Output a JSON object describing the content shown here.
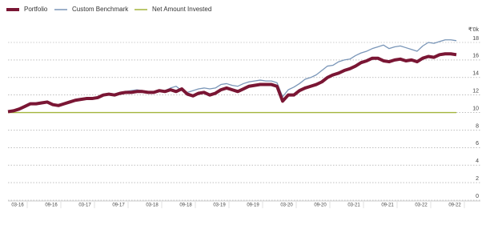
{
  "chart_data": {
    "type": "line",
    "y_unit_label": "₹'0k",
    "categories": [
      null,
      "03-16",
      null,
      null,
      null,
      null,
      null,
      "09-16",
      null,
      null,
      null,
      null,
      null,
      "03-17",
      null,
      null,
      null,
      null,
      null,
      "09-17",
      null,
      null,
      null,
      null,
      null,
      "03-18",
      null,
      null,
      null,
      null,
      null,
      "09-18",
      null,
      null,
      null,
      null,
      null,
      "03-19",
      null,
      null,
      null,
      null,
      null,
      "09-19",
      null,
      null,
      null,
      null,
      null,
      "03-20",
      null,
      null,
      null,
      null,
      null,
      "09-20",
      null,
      null,
      null,
      null,
      null,
      "03-21",
      null,
      null,
      null,
      null,
      null,
      "09-21",
      null,
      null,
      null,
      null,
      null,
      "03-22",
      null,
      null,
      null,
      null,
      null,
      "09-22",
      null
    ],
    "series": [
      {
        "name": "Portfolio",
        "color": "#7a1634",
        "width": 4,
        "values": [
          10.1,
          10.2,
          10.4,
          10.7,
          11.0,
          11.0,
          11.1,
          11.2,
          10.9,
          10.8,
          11.0,
          11.2,
          11.4,
          11.5,
          11.6,
          11.6,
          11.7,
          12.0,
          12.1,
          12.0,
          12.2,
          12.3,
          12.3,
          12.4,
          12.4,
          12.3,
          12.3,
          12.5,
          12.4,
          12.6,
          12.4,
          12.7,
          12.1,
          11.9,
          12.2,
          12.3,
          12.0,
          12.2,
          12.6,
          12.8,
          12.6,
          12.4,
          12.7,
          13.0,
          13.1,
          13.2,
          13.2,
          13.2,
          13.0,
          11.3,
          12.0,
          12.0,
          12.5,
          12.8,
          13.0,
          13.2,
          13.5,
          14.0,
          14.3,
          14.5,
          14.8,
          15.0,
          15.3,
          15.7,
          15.9,
          16.2,
          16.2,
          15.9,
          15.8,
          16.0,
          16.1,
          15.9,
          16.0,
          15.8,
          16.2,
          16.4,
          16.3,
          16.6,
          16.7,
          16.7,
          16.6
        ]
      },
      {
        "name": "Custom Benchmark",
        "color": "#7a96b8",
        "width": 1.3,
        "values": [
          10.2,
          10.3,
          10.5,
          10.8,
          11.0,
          11.1,
          11.2,
          11.1,
          10.9,
          10.9,
          11.1,
          11.3,
          11.5,
          11.6,
          11.7,
          11.7,
          11.8,
          12.1,
          12.2,
          12.1,
          12.3,
          12.4,
          12.5,
          12.6,
          12.5,
          12.4,
          12.4,
          12.6,
          12.5,
          12.8,
          13.0,
          12.5,
          12.3,
          12.5,
          12.7,
          12.8,
          12.7,
          12.8,
          13.2,
          13.3,
          13.1,
          13.0,
          13.3,
          13.5,
          13.6,
          13.7,
          13.6,
          13.6,
          13.4,
          11.8,
          12.6,
          12.9,
          13.3,
          13.8,
          14.0,
          14.3,
          14.8,
          15.3,
          15.4,
          15.8,
          16.0,
          16.1,
          16.5,
          16.8,
          17.0,
          17.3,
          17.5,
          17.7,
          17.3,
          17.5,
          17.6,
          17.4,
          17.2,
          17.0,
          17.6,
          18.0,
          17.9,
          18.1,
          18.3,
          18.3,
          18.2
        ]
      },
      {
        "name": "Net Amount Invested",
        "color": "#a3b43c",
        "width": 1.3,
        "values": [
          10,
          10,
          10,
          10,
          10,
          10,
          10,
          10,
          10,
          10,
          10,
          10,
          10,
          10,
          10,
          10,
          10,
          10,
          10,
          10,
          10,
          10,
          10,
          10,
          10,
          10,
          10,
          10,
          10,
          10,
          10,
          10,
          10,
          10,
          10,
          10,
          10,
          10,
          10,
          10,
          10,
          10,
          10,
          10,
          10,
          10,
          10,
          10,
          10,
          10,
          10,
          10,
          10,
          10,
          10,
          10,
          10,
          10,
          10,
          10,
          10,
          10,
          10,
          10,
          10,
          10,
          10,
          10,
          10,
          10,
          10,
          10,
          10,
          10,
          10,
          10,
          10,
          10,
          10,
          10,
          10
        ]
      }
    ],
    "ylim": [
      0,
      18
    ],
    "yticks": [
      0,
      2,
      4,
      6,
      8,
      10,
      12,
      14,
      16,
      18
    ],
    "grid": true,
    "legend": "top-left"
  }
}
